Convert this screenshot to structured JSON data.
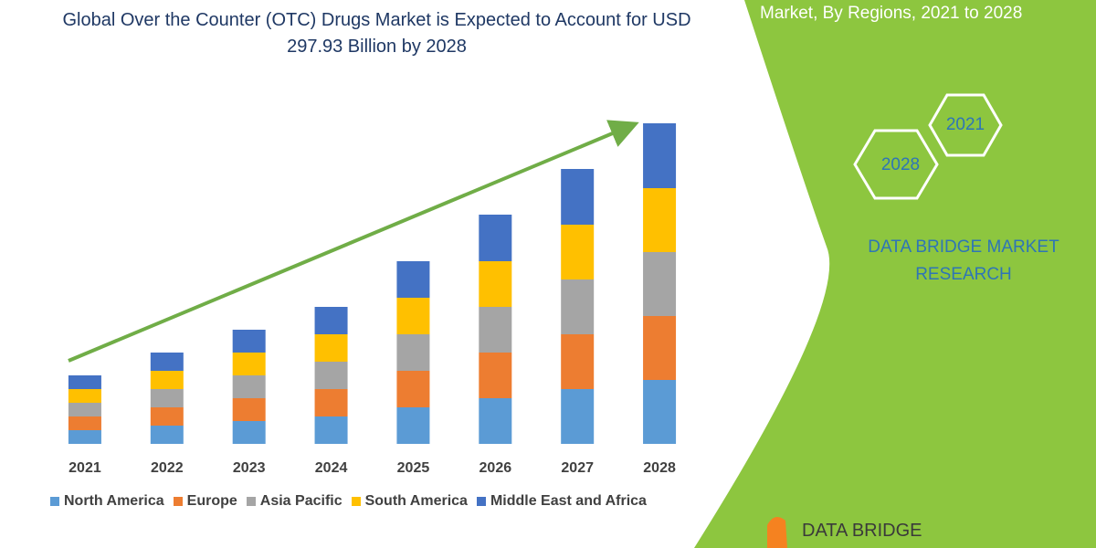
{
  "header": {
    "subtitle": "Market, By Regions, 2021 to 2028"
  },
  "badges": [
    "2021",
    "2028"
  ],
  "brand": "DATA BRIDGE MARKET RESEARCH",
  "logo": "DATA BRIDGE",
  "chart_data": {
    "type": "bar",
    "stacked": true,
    "title": "Global Over the Counter (OTC) Drugs Market is Expected to Account for USD 297.93 Billion by 2028",
    "categories": [
      "2021",
      "2022",
      "2023",
      "2024",
      "2025",
      "2026",
      "2027",
      "2028"
    ],
    "series": [
      {
        "name": "North America",
        "color": "#5b9bd5",
        "values": [
          15,
          20,
          25,
          30,
          40,
          50,
          60,
          70
        ]
      },
      {
        "name": "Europe",
        "color": "#ed7d31",
        "values": [
          15,
          20,
          25,
          30,
          40,
          50,
          60,
          70
        ]
      },
      {
        "name": "Asia Pacific",
        "color": "#a5a5a5",
        "values": [
          15,
          20,
          25,
          30,
          40,
          50,
          60,
          70
        ]
      },
      {
        "name": "South America",
        "color": "#ffc000",
        "values": [
          15,
          20,
          25,
          30,
          40,
          50,
          60,
          70
        ]
      },
      {
        "name": "Middle East and Africa",
        "color": "#4472c4",
        "values": [
          15,
          20,
          25,
          30,
          40,
          51,
          61,
          71
        ]
      }
    ]
  }
}
